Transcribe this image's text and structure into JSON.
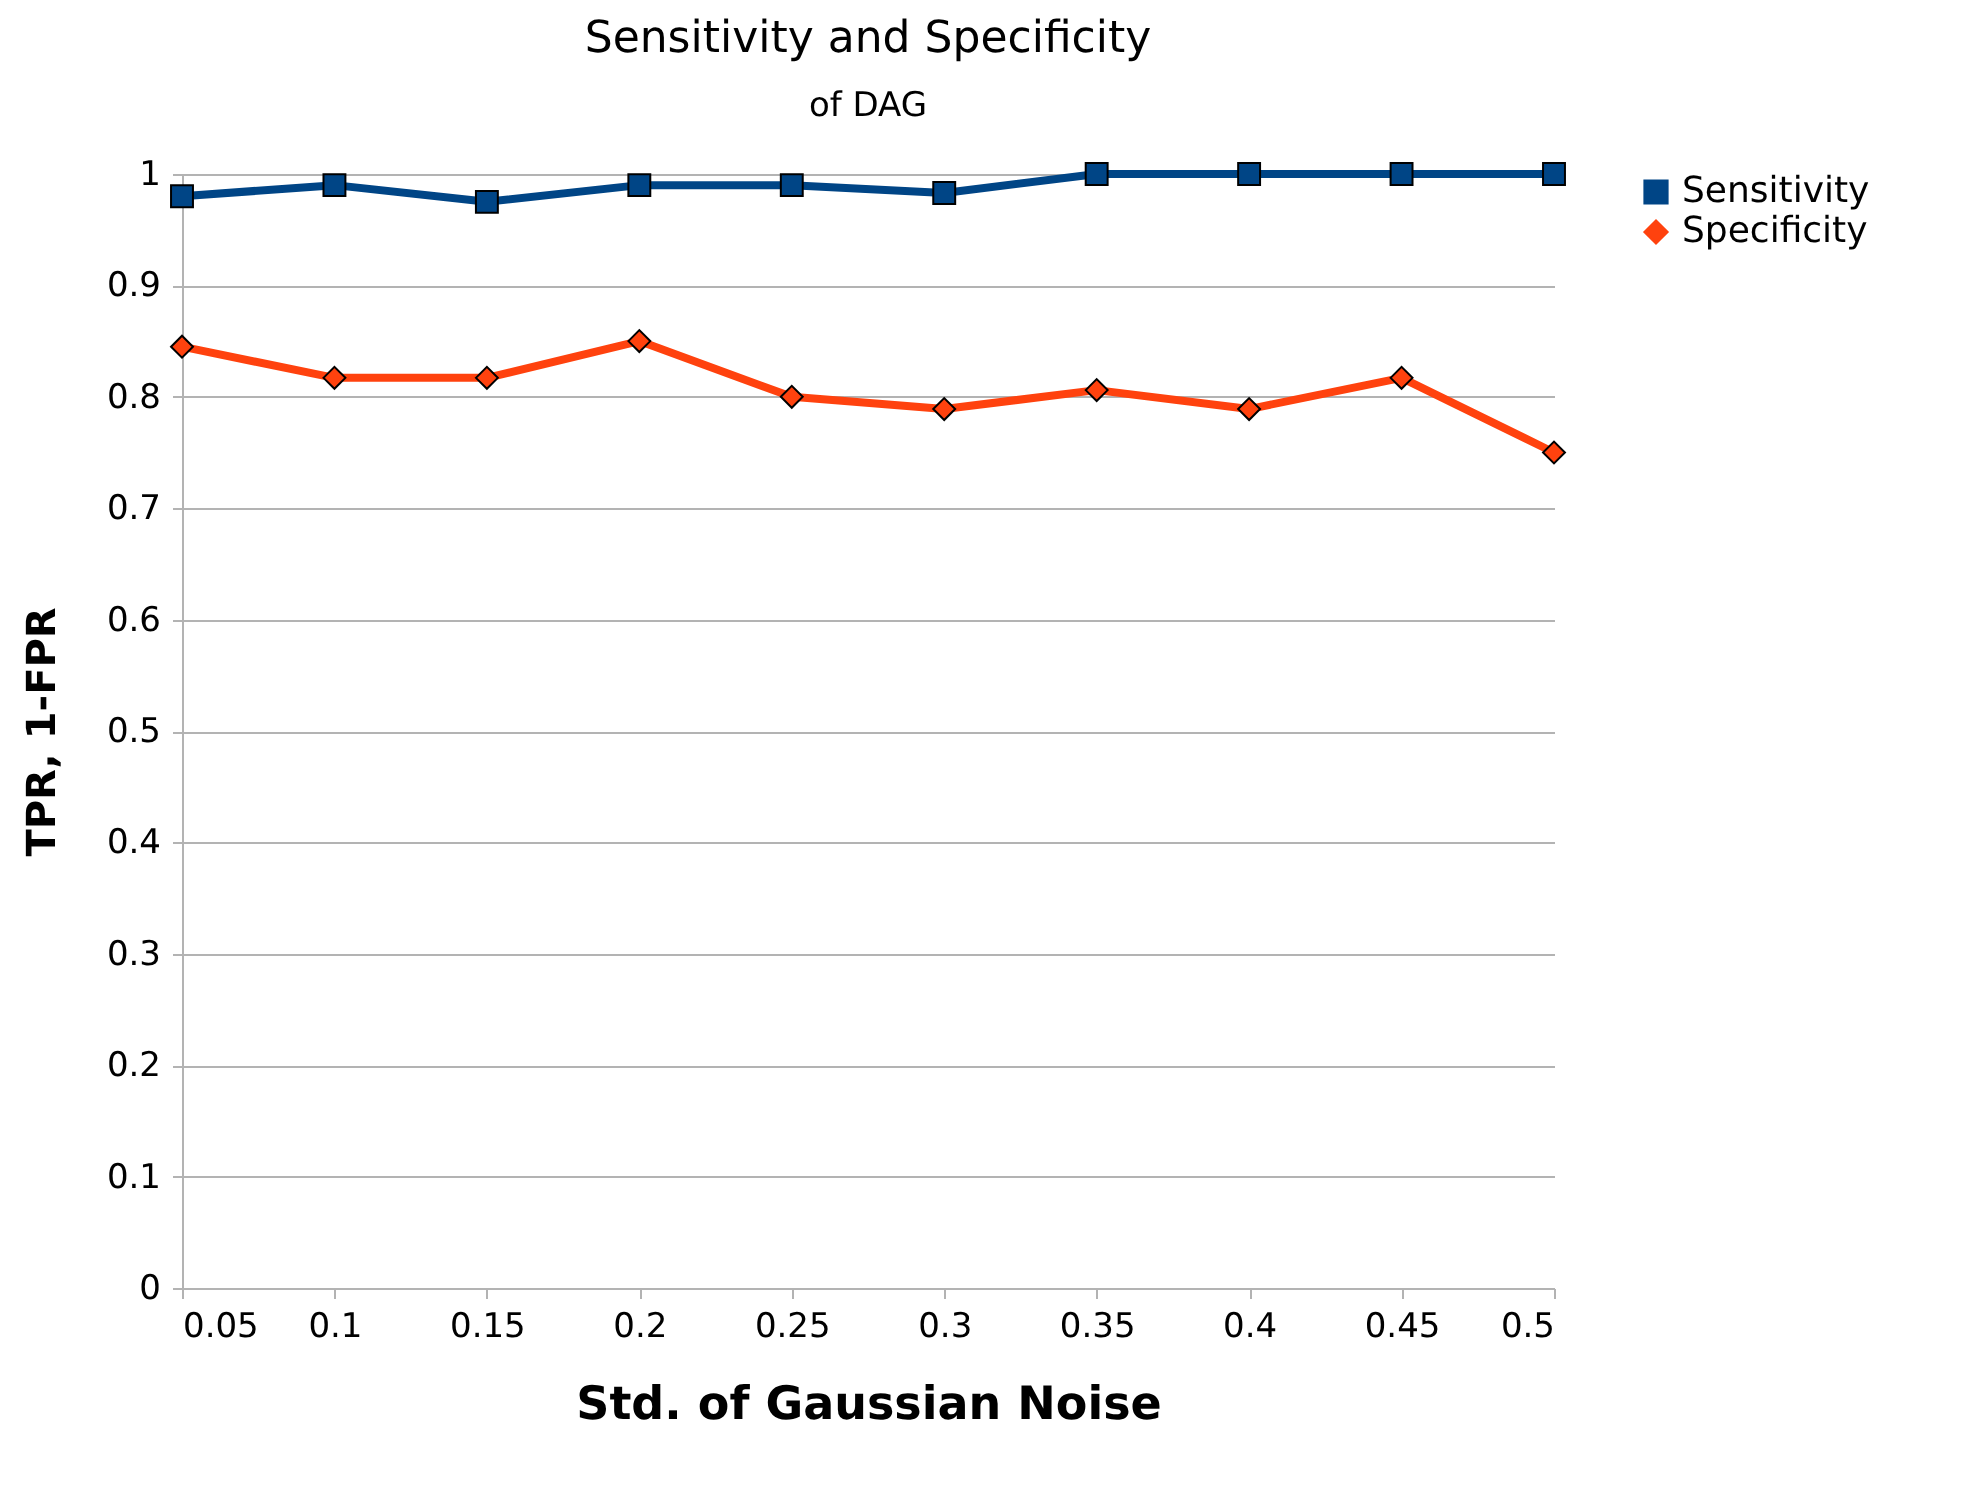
{
  "chart_data": {
    "type": "line",
    "title": "Sensitivity and Specificity",
    "subtitle": "of DAG",
    "xlabel": "Std. of Gaussian Noise",
    "ylabel": "TPR, 1-FPR",
    "x": [
      0.05,
      0.1,
      0.15,
      0.2,
      0.25,
      0.3,
      0.35,
      0.4,
      0.45,
      0.5
    ],
    "xlim": [
      0.05,
      0.5
    ],
    "xticks": [
      0.05,
      0.1,
      0.15,
      0.2,
      0.25,
      0.3,
      0.35,
      0.4,
      0.45,
      0.5
    ],
    "ylim": [
      0,
      1
    ],
    "yticks": [
      0,
      0.1,
      0.2,
      0.3,
      0.4,
      0.5,
      0.6,
      0.7,
      0.8,
      0.9,
      1
    ],
    "grid": "y",
    "legend": "right",
    "line_style": "solid",
    "series": [
      {
        "name": "Sensitivity",
        "color": "#004586",
        "marker": "square",
        "values": [
          0.98,
          0.99,
          0.975,
          0.99,
          0.99,
          0.983,
          1,
          1,
          1,
          1
        ]
      },
      {
        "name": "Specificity",
        "color": "#ff420e",
        "marker": "diamond",
        "values": [
          0.845,
          0.817,
          0.817,
          0.85,
          0.8,
          0.789,
          0.806,
          0.789,
          0.817,
          0.75
        ]
      }
    ]
  }
}
